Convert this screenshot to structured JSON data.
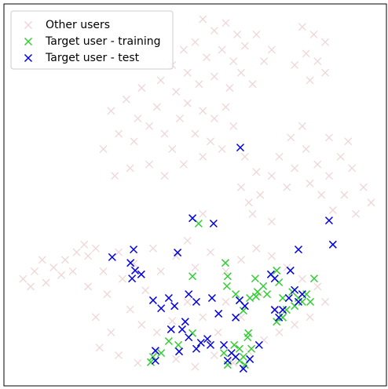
{
  "chart_data": {
    "type": "scatter",
    "xlim": [
      0,
      100
    ],
    "ylim": [
      0,
      100
    ],
    "legend": "upper left",
    "series": [
      {
        "name": "Other users",
        "color": "#c87878",
        "x": [
          52,
          55,
          58,
          61,
          50,
          47,
          53,
          57,
          60,
          63,
          66,
          44,
          48,
          41,
          45,
          51,
          55,
          59,
          62,
          65,
          68,
          70,
          78,
          81,
          84,
          79,
          82,
          76,
          80,
          84,
          28,
          32,
          35,
          30,
          26,
          34,
          38,
          40,
          36,
          42,
          46,
          44,
          48,
          52,
          50,
          55,
          58,
          54,
          60,
          38,
          33,
          29,
          42,
          47,
          52,
          57,
          63,
          66,
          62,
          67,
          65,
          70,
          72,
          74,
          76,
          79,
          82,
          85,
          88,
          91,
          94,
          96,
          92,
          89,
          86,
          83,
          80,
          75,
          78,
          85,
          90,
          70,
          64,
          48,
          52,
          24,
          30,
          34,
          26,
          22,
          27,
          24,
          28,
          25,
          30,
          35,
          40,
          45,
          50,
          55,
          60,
          64,
          68,
          72,
          33,
          37,
          41,
          45,
          50,
          54,
          58,
          62,
          66,
          70,
          74,
          78,
          82,
          84,
          80,
          76,
          56,
          52,
          48,
          44,
          40,
          36,
          31,
          39,
          58,
          62,
          67,
          71,
          5,
          8,
          11,
          13,
          16,
          19,
          22,
          10,
          15,
          18,
          21,
          7
        ],
        "values": [
          96,
          93,
          95,
          92,
          90,
          88,
          86,
          88,
          85,
          89,
          92,
          84,
          82,
          80,
          77,
          79,
          81,
          78,
          82,
          79,
          85,
          88,
          94,
          92,
          90,
          87,
          85,
          84,
          80,
          82,
          72,
          75,
          70,
          66,
          62,
          64,
          68,
          73,
          78,
          66,
          70,
          62,
          74,
          72,
          66,
          70,
          73,
          64,
          68,
          58,
          57,
          55,
          55,
          58,
          60,
          62,
          60,
          56,
          52,
          50,
          45,
          55,
          60,
          52,
          57,
          62,
          58,
          55,
          60,
          57,
          52,
          48,
          45,
          50,
          46,
          50,
          53,
          65,
          68,
          65,
          64,
          43,
          48,
          38,
          45,
          36,
          35,
          32,
          30,
          26,
          24,
          18,
          14,
          10,
          8,
          6,
          9,
          7,
          5,
          8,
          6,
          9,
          12,
          14,
          20,
          25,
          30,
          34,
          31,
          35,
          30,
          33,
          36,
          34,
          31,
          28,
          26,
          22,
          18,
          16,
          14,
          18,
          22,
          17,
          14,
          16,
          28,
          36,
          22,
          18,
          24,
          20,
          28,
          30,
          27,
          31,
          33,
          35,
          34,
          33,
          29,
          30,
          37,
          26
        ]
      },
      {
        "name": "Target user - training",
        "color": "#33cc33",
        "x": [
          50.9,
          57.9,
          49.3,
          58.5,
          58.3,
          65.7,
          65.9,
          64.3,
          61.6,
          62.6,
          71.3,
          71.9,
          75.4,
          78.0,
          80.1,
          81.1,
          72.9,
          73.9,
          71.3,
          63.9,
          64.7,
          62.6,
          61.6,
          60.2,
          57.5,
          58.5,
          43.1,
          41.1,
          39.0,
          38.4,
          49.3,
          45.6,
          60.6,
          68.8,
          67.8,
          77.0,
          76.0,
          79.1,
          72.9,
          66.3,
          63.7,
          61.6,
          63.0
        ],
        "values": [
          42.5,
          32.2,
          28.7,
          28.7,
          26.1,
          28.1,
          23.4,
          23.0,
          22.4,
          19.7,
          30.2,
          27.1,
          24.6,
          22.0,
          22.0,
          28.1,
          17.9,
          19.9,
          16.8,
          13.8,
          9.7,
          7.6,
          6.6,
          10.7,
          8.6,
          5.5,
          11.7,
          8.6,
          7.6,
          6.2,
          13.8,
          10.7,
          24.0,
          24.0,
          26.1,
          23.0,
          20.9,
          24.0,
          23.0,
          24.6,
          12.7,
          9.7,
          5.5
        ]
      },
      {
        "name": "Target user - test",
        "color": "#0000dd",
        "x": [
          61.8,
          49.3,
          54.8,
          85.0,
          86.0,
          77.0,
          28.3,
          33.9,
          33.1,
          34.3,
          35.9,
          33.5,
          45.4,
          39.0,
          41.1,
          43.1,
          44.6,
          48.3,
          50.3,
          54.4,
          61.6,
          63.0,
          60.6,
          56.1,
          47.4,
          46.6,
          48.3,
          51.5,
          53.2,
          54.0,
          50.3,
          43.7,
          39.6,
          39.6,
          45.8,
          57.5,
          59.5,
          60.6,
          58.5,
          62.6,
          64.3,
          66.7,
          69.8,
          70.8,
          74.9,
          76.0,
          77.0,
          78.0,
          72.9,
          70.8,
          71.9,
          74.5
        ],
        "values": [
          62.4,
          43.9,
          42.5,
          43.3,
          37.0,
          35.7,
          33.7,
          35.7,
          32.2,
          30.2,
          29.2,
          28.1,
          34.9,
          22.4,
          20.3,
          23.0,
          20.9,
          24.0,
          22.0,
          23.0,
          22.4,
          20.9,
          17.9,
          18.9,
          16.8,
          14.8,
          12.7,
          11.3,
          12.3,
          10.7,
          9.7,
          14.8,
          9.2,
          6.6,
          9.0,
          10.7,
          8.6,
          7.6,
          6.6,
          4.5,
          7.0,
          10.7,
          29.2,
          28.1,
          30.2,
          25.1,
          22.0,
          24.0,
          19.9,
          19.9,
          17.9,
          23.0
        ]
      }
    ]
  }
}
